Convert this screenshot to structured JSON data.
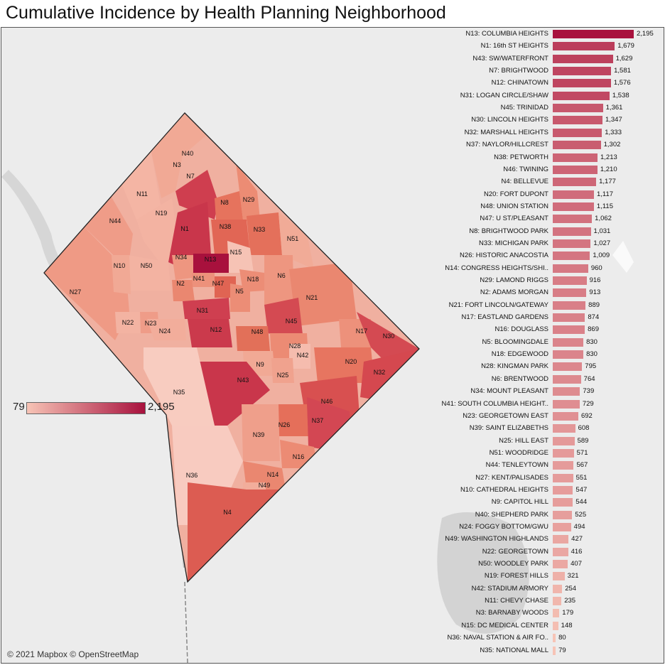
{
  "title": "Cumulative Incidence by Health Planning Neighborhood",
  "attribution": "© 2021 Mapbox © OpenStreetMap",
  "colors": {
    "low": "#f7c4b6",
    "high": "#a8113d",
    "background": "#ececec",
    "water": "#c8c8c8"
  },
  "legend": {
    "min_label": "79",
    "max_label": "2,195",
    "min": 79,
    "max": 2195
  },
  "map_labels": [
    "N40",
    "N3",
    "N7",
    "N11",
    "N19",
    "N8",
    "N29",
    "N44",
    "N1",
    "N38",
    "N33",
    "N51",
    "N15",
    "N34",
    "N13",
    "N10",
    "N50",
    "N6",
    "N41",
    "N47",
    "N18",
    "N2",
    "N5",
    "N27",
    "N21",
    "N31",
    "N45",
    "N12",
    "N22",
    "N23",
    "N24",
    "N48",
    "N28",
    "N17",
    "N42",
    "N30",
    "N9",
    "N20",
    "N25",
    "N32",
    "N43",
    "N35",
    "N46",
    "N26",
    "N37",
    "N39",
    "N16",
    "N36",
    "N14",
    "N49",
    "N4"
  ],
  "chart_data": {
    "type": "bar",
    "orientation": "horizontal",
    "categories": [
      "N13: COLUMBIA HEIGHTS",
      "N1: 16th ST HEIGHTS",
      "N43: SW/WATERFRONT",
      "N7: BRIGHTWOOD",
      "N12: CHINATOWN",
      "N31: LOGAN CIRCLE/SHAW",
      "N45: TRINIDAD",
      "N30: LINCOLN HEIGHTS",
      "N32: MARSHALL HEIGHTS",
      "N37: NAYLOR/HILLCREST",
      "N38: PETWORTH",
      "N46: TWINING",
      "N4: BELLEVUE",
      "N20: FORT DUPONT",
      "N48: UNION STATION",
      "N47: U ST/PLEASANT",
      "N8: BRIGHTWOOD PARK",
      "N33: MICHIGAN PARK",
      "N26: HISTORIC ANACOSTIA",
      "N14: CONGRESS HEIGHTS/SHI..",
      "N29: LAMOND RIGGS",
      "N2: ADAMS MORGAN",
      "N21: FORT LINCOLN/GATEWAY",
      "N17: EASTLAND GARDENS",
      "N16: DOUGLASS",
      "N5: BLOOMINGDALE",
      "N18: EDGEWOOD",
      "N28: KINGMAN PARK",
      "N6: BRENTWOOD",
      "N34: MOUNT PLEASANT",
      "N41: SOUTH COLUMBIA HEIGHT..",
      "N23: GEORGETOWN EAST",
      "N39: SAINT ELIZABETHS",
      "N25: HILL EAST",
      "N51: WOODRIDGE",
      "N44: TENLEYTOWN",
      "N27: KENT/PALISADES",
      "N10: CATHEDRAL HEIGHTS",
      "N9: CAPITOL HILL",
      "N40: SHEPHERD PARK",
      "N24: FOGGY BOTTOM/GWU",
      "N49: WASHINGTON HIGHLANDS",
      "N22: GEORGETOWN",
      "N50: WOODLEY PARK",
      "N19: FOREST HILLS",
      "N42: STADIUM ARMORY",
      "N11: CHEVY CHASE",
      "N3: BARNABY WOODS",
      "N15: DC MEDICAL CENTER",
      "N36: NAVAL STATION & AIR FO..",
      "N35: NATIONAL MALL"
    ],
    "values": [
      2195,
      1679,
      1629,
      1581,
      1576,
      1538,
      1361,
      1347,
      1333,
      1302,
      1213,
      1210,
      1177,
      1117,
      1115,
      1062,
      1031,
      1027,
      1009,
      960,
      916,
      913,
      889,
      874,
      869,
      830,
      830,
      795,
      764,
      739,
      729,
      692,
      608,
      589,
      571,
      567,
      551,
      547,
      544,
      525,
      494,
      427,
      416,
      407,
      321,
      254,
      235,
      179,
      148,
      80,
      79
    ],
    "value_labels": [
      "2,195",
      "1,679",
      "1,629",
      "1,581",
      "1,576",
      "1,538",
      "1,361",
      "1,347",
      "1,333",
      "1,302",
      "1,213",
      "1,210",
      "1,177",
      "1,117",
      "1,115",
      "1,062",
      "1,031",
      "1,027",
      "1,009",
      "960",
      "916",
      "913",
      "889",
      "874",
      "869",
      "830",
      "830",
      "795",
      "764",
      "739",
      "729",
      "692",
      "608",
      "589",
      "571",
      "567",
      "551",
      "547",
      "544",
      "525",
      "494",
      "427",
      "416",
      "407",
      "321",
      "254",
      "235",
      "179",
      "148",
      "80",
      "79"
    ],
    "title": "",
    "xlabel": "",
    "ylabel": "",
    "xlim": [
      0,
      2195
    ],
    "grid": false
  }
}
